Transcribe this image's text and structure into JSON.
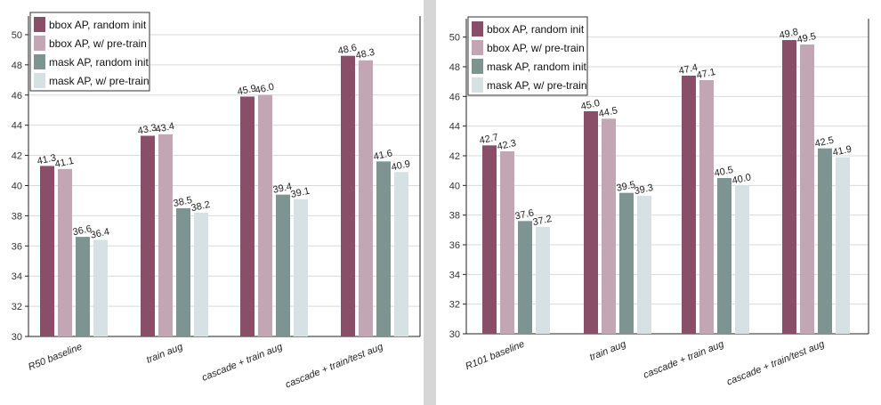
{
  "colors": {
    "bbox_random": "#8a4f68",
    "bbox_pretrain": "#c3a6b4",
    "mask_random": "#7d9490",
    "mask_pretrain": "#d5e1e2",
    "divider": "#d6d6d6"
  },
  "chart_data": [
    {
      "type": "bar",
      "title": "",
      "xlabel": "",
      "ylabel": "",
      "ylim": [
        30,
        51
      ],
      "yticks": [
        30,
        32,
        34,
        36,
        38,
        40,
        42,
        44,
        46,
        48,
        50
      ],
      "grid": true,
      "legend_position": "top-left",
      "categories": [
        "R50 baseline",
        "train aug",
        "cascade + train aug",
        "cascade + train/test aug"
      ],
      "series": [
        {
          "name": "bbox AP, random init",
          "color_key": "bbox_random",
          "values": [
            41.3,
            43.3,
            45.9,
            48.6
          ],
          "labels": [
            "41.3",
            "43.3",
            "45.9",
            "48.6"
          ]
        },
        {
          "name": "bbox AP, w/ pre-train",
          "color_key": "bbox_pretrain",
          "values": [
            41.1,
            43.4,
            46.0,
            48.3
          ],
          "labels": [
            "41.1",
            "43.4",
            "46.0",
            "48.3"
          ]
        },
        {
          "name": "mask AP, random init",
          "color_key": "mask_random",
          "values": [
            36.6,
            38.5,
            39.4,
            41.6
          ],
          "labels": [
            "36.6",
            "38.5",
            "39.4",
            "41.6"
          ]
        },
        {
          "name": "mask AP, w/ pre-train",
          "color_key": "mask_pretrain",
          "values": [
            36.4,
            38.2,
            39.1,
            40.9
          ],
          "labels": [
            "36.4",
            "38.2",
            "39.1",
            "40.9"
          ]
        }
      ]
    },
    {
      "type": "bar",
      "title": "",
      "xlabel": "",
      "ylabel": "",
      "ylim": [
        30,
        51
      ],
      "yticks": [
        30,
        32,
        34,
        36,
        38,
        40,
        42,
        44,
        46,
        48,
        50
      ],
      "grid": true,
      "legend_position": "top-left",
      "categories": [
        "R101 baseline",
        "train aug",
        "cascade + train aug",
        "cascade + train/test aug"
      ],
      "series": [
        {
          "name": "bbox AP, random init",
          "color_key": "bbox_random",
          "values": [
            42.7,
            45.0,
            47.4,
            49.8
          ],
          "labels": [
            "42.7",
            "45.0",
            "47.4",
            "49.8"
          ]
        },
        {
          "name": "bbox AP, w/ pre-train",
          "color_key": "bbox_pretrain",
          "values": [
            42.3,
            44.5,
            47.1,
            49.5
          ],
          "labels": [
            "42.3",
            "44.5",
            "47.1",
            "49.5"
          ]
        },
        {
          "name": "mask AP, random init",
          "color_key": "mask_random",
          "values": [
            37.6,
            39.5,
            40.5,
            42.5
          ],
          "labels": [
            "37.6",
            "39.5",
            "40.5",
            "42.5"
          ]
        },
        {
          "name": "mask AP, w/ pre-train",
          "color_key": "mask_pretrain",
          "values": [
            37.2,
            39.3,
            40.0,
            41.9
          ],
          "labels": [
            "37.2",
            "39.3",
            "40.0",
            "41.9"
          ]
        }
      ]
    }
  ]
}
